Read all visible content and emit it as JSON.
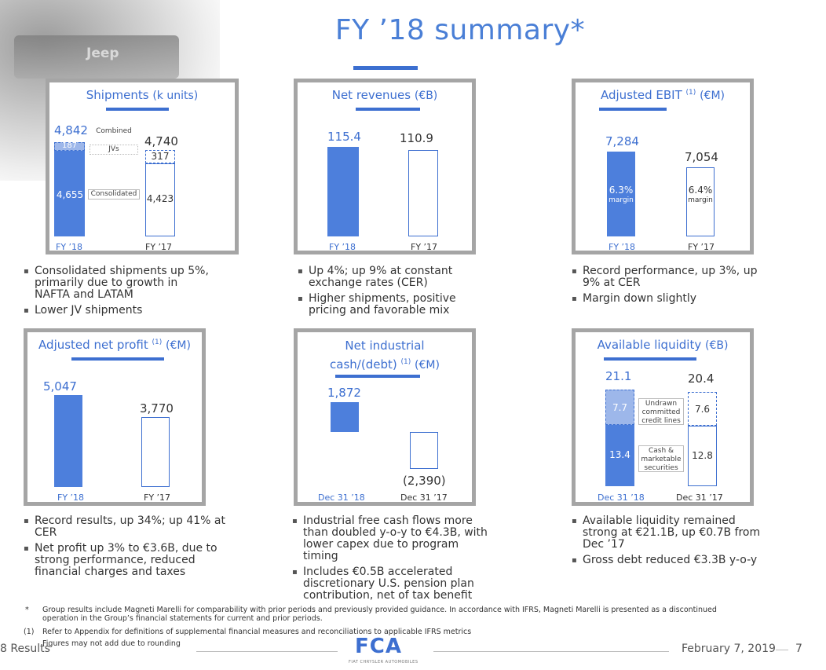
{
  "header": {
    "title": "FY ’18 summary*",
    "photo_text": "Jeep"
  },
  "shipments": {
    "title": "Shipments",
    "unit": "(k units)",
    "fy18": {
      "combined": "4,842",
      "jv": "187",
      "consolidated": "4,655",
      "label": "FY ’18"
    },
    "fy17": {
      "combined": "4,740",
      "jv": "317",
      "consolidated": "4,423",
      "label": "FY ’17"
    },
    "tag_combined": "Combined",
    "tag_jvs": "JVs",
    "tag_consolidated": "Consolidated",
    "bullets": [
      "Consolidated shipments up 5%, primarily due to growth in NAFTA and LATAM",
      "Lower JV shipments"
    ]
  },
  "net_revenues": {
    "title": "Net revenues",
    "unit": "(€B)",
    "fy18": {
      "value": "115.4",
      "label": "FY ’18"
    },
    "fy17": {
      "value": "110.9",
      "label": "FY ’17"
    },
    "bullets": [
      "Up 4%; up 9% at constant exchange rates (CER)",
      "Higher shipments, positive pricing and favorable mix"
    ]
  },
  "adjusted_ebit": {
    "title": "Adjusted EBIT",
    "note": "(1)",
    "unit": "(€M)",
    "fy18": {
      "value": "7,284",
      "margin": "6.3%",
      "margin_label": "margin",
      "label": "FY ’18"
    },
    "fy17": {
      "value": "7,054",
      "margin": "6.4%",
      "margin_label": "margin",
      "label": "FY ’17"
    },
    "bullets": [
      "Record performance, up 3%, up 9% at CER",
      "Margin down slightly"
    ]
  },
  "adjusted_net_profit": {
    "title": "Adjusted net profit",
    "note": "(1)",
    "unit": "(€M)",
    "fy18": {
      "value": "5,047",
      "label": "FY ’18"
    },
    "fy17": {
      "value": "3,770",
      "label": "FY ’17"
    },
    "bullets": [
      "Record results, up 34%; up 41% at CER",
      "Net profit up 3% to €3.6B, due to strong performance, reduced financial charges and taxes"
    ]
  },
  "net_industrial": {
    "title_line1": "Net industrial",
    "title_line2": "cash/(debt)",
    "note": "(1)",
    "unit": "(€M)",
    "dec18": {
      "value": "1,872",
      "label": "Dec 31 ’18"
    },
    "dec17": {
      "value": "(2,390)",
      "label": "Dec 31 ’17"
    },
    "bullets": [
      "Industrial free cash flows more than doubled y-o-y to €4.3B, with lower capex due to program timing",
      "Includes €0.5B accelerated discretionary U.S. pension plan contribution, net of tax benefit"
    ]
  },
  "liquidity": {
    "title": "Available liquidity",
    "unit": "(€B)",
    "dec18": {
      "total": "21.1",
      "undrawn": "7.7",
      "cash": "13.4",
      "label": "Dec 31 ’18"
    },
    "dec17": {
      "total": "20.4",
      "undrawn": "7.6",
      "cash": "12.8",
      "label": "Dec 31 ’17"
    },
    "tag_undrawn": [
      "Undrawn",
      "committed",
      "credit lines"
    ],
    "tag_cash": [
      "Cash &",
      "marketable",
      "securities"
    ],
    "bullets": [
      "Available liquidity remained strong at €21.1B, up €0.7B from Dec ’17",
      "Gross debt reduced €3.3B y-o-y"
    ]
  },
  "footnotes": {
    "star_mark": "*",
    "star": "Group results include Magneti Marelli for comparability with prior periods and previously provided guidance. In accordance with IFRS, Magneti Marelli is presented as a discontinued operation in the Group’s financial statements for current and prior periods.",
    "one_mark": "(1)",
    "one": "Refer to Appendix for definitions of supplemental financial measures and reconciliations to applicable IFRS metrics",
    "rounding": "Figures may not add due to rounding"
  },
  "footer": {
    "left": "8 Results",
    "logo": "FCA",
    "logo_sub": "FIAT CHRYSLER AUTOMOBILES",
    "date": "February 7, 2019",
    "page": "7"
  }
}
